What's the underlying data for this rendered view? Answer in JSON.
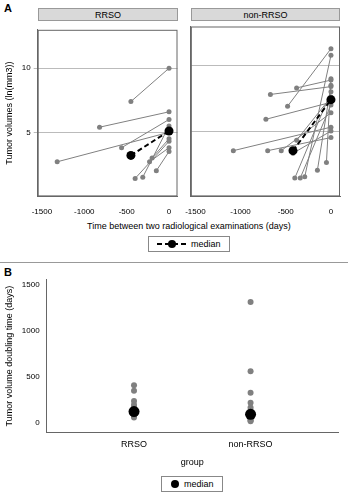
{
  "chart_data": [
    {
      "panel": "A",
      "type": "line",
      "x_label": "Time between two radiological examinations (days)",
      "y_label": "Tumor volumes (ln(mm3))",
      "xlim": [
        -1550,
        100
      ],
      "xticks": [
        -1500,
        -1000,
        -500,
        0
      ],
      "ylim": [
        0,
        13
      ],
      "yticks": [
        5,
        10
      ],
      "grid": true,
      "legend": "bottom",
      "facets": [
        {
          "title": "RRSO",
          "series": [
            {
              "color": "#808080",
              "marker": "circle",
              "x": [
                -1320,
                0
              ],
              "values": [
                2.7,
                5.0
              ]
            },
            {
              "color": "#808080",
              "marker": "circle",
              "x": [
                -820,
                0
              ],
              "values": [
                5.4,
                6.6
              ]
            },
            {
              "color": "#808080",
              "marker": "circle",
              "x": [
                -450,
                0
              ],
              "values": [
                7.4,
                10.0
              ]
            },
            {
              "color": "#808080",
              "marker": "circle",
              "x": [
                -560,
                0
              ],
              "values": [
                3.8,
                6.0
              ]
            },
            {
              "color": "#808080",
              "marker": "circle",
              "x": [
                -400,
                0
              ],
              "values": [
                1.4,
                4.3
              ]
            },
            {
              "color": "#808080",
              "marker": "circle",
              "x": [
                -230,
                0
              ],
              "values": [
                2.7,
                3.8
              ]
            },
            {
              "color": "#808080",
              "marker": "circle",
              "x": [
                -200,
                0
              ],
              "values": [
                3.0,
                4.5
              ]
            },
            {
              "color": "#808080",
              "marker": "circle",
              "x": [
                -150,
                0
              ],
              "values": [
                2.0,
                3.5
              ]
            },
            {
              "color": "#808080",
              "marker": "circle",
              "x": [
                -310,
                0
              ],
              "values": [
                1.5,
                5.5
              ]
            },
            {
              "name": "median",
              "color": "#000000",
              "marker": "circle",
              "line_style": "dashed",
              "x": [
                -450,
                0
              ],
              "values": [
                3.2,
                5.1
              ]
            }
          ]
        },
        {
          "title": "non-RRSO",
          "series": [
            {
              "color": "#808080",
              "marker": "circle",
              "x": [
                -1080,
                0
              ],
              "values": [
                3.5,
                5.3
              ]
            },
            {
              "color": "#808080",
              "marker": "circle",
              "x": [
                -720,
                0
              ],
              "values": [
                5.9,
                7.2
              ]
            },
            {
              "color": "#808080",
              "marker": "circle",
              "x": [
                -670,
                0
              ],
              "values": [
                7.8,
                8.4
              ]
            },
            {
              "color": "#808080",
              "marker": "circle",
              "x": [
                -480,
                0
              ],
              "values": [
                6.9,
                11.3
              ]
            },
            {
              "color": "#808080",
              "marker": "circle",
              "x": [
                -380,
                0
              ],
              "values": [
                8.3,
                8.9
              ]
            },
            {
              "color": "#808080",
              "marker": "circle",
              "x": [
                -700,
                0
              ],
              "values": [
                3.5,
                4.5
              ]
            },
            {
              "color": "#808080",
              "marker": "circle",
              "x": [
                -550,
                0
              ],
              "values": [
                3.5,
                6.4
              ]
            },
            {
              "color": "#808080",
              "marker": "circle",
              "x": [
                -420,
                0
              ],
              "values": [
                3.3,
                5.0
              ]
            },
            {
              "color": "#808080",
              "marker": "circle",
              "x": [
                -400,
                0
              ],
              "values": [
                1.4,
                8.0
              ]
            },
            {
              "color": "#808080",
              "marker": "circle",
              "x": [
                -340,
                0
              ],
              "values": [
                1.4,
                7.0
              ]
            },
            {
              "color": "#808080",
              "marker": "circle",
              "x": [
                -290,
                0
              ],
              "values": [
                1.5,
                10.8
              ]
            },
            {
              "color": "#808080",
              "marker": "circle",
              "x": [
                -380,
                0
              ],
              "values": [
                4.3,
                7.6
              ]
            },
            {
              "color": "#808080",
              "marker": "circle",
              "x": [
                -150,
                0
              ],
              "values": [
                2.0,
                8.5
              ]
            },
            {
              "color": "#808080",
              "marker": "circle",
              "x": [
                -50,
                0
              ],
              "values": [
                2.6,
                9.0
              ]
            },
            {
              "name": "median",
              "color": "#000000",
              "marker": "circle",
              "line_style": "dashed",
              "x": [
                -420,
                0
              ],
              "values": [
                3.5,
                7.4
              ]
            }
          ]
        }
      ]
    },
    {
      "panel": "B",
      "type": "scatter",
      "x_label": "group",
      "y_label": "Tumor volume doubling time (days)",
      "categories": [
        "RRSO",
        "non-RRSO"
      ],
      "ylim": [
        -100,
        1550
      ],
      "yticks": [
        0,
        500,
        1000,
        1500
      ],
      "grid": false,
      "legend": "bottom",
      "series": [
        {
          "color": "#808080",
          "marker": "circle",
          "values": [
            [
              410,
              350,
              240,
              200,
              170,
              150,
              120,
              100,
              80,
              60
            ],
            [
              1310,
              560,
              330,
              220,
              170,
              140,
              110,
              90,
              70,
              50,
              40,
              30,
              20
            ]
          ]
        },
        {
          "name": "median",
          "color": "#000000",
          "marker": "circle",
          "values": [
            [
              125
            ],
            [
              95
            ]
          ]
        }
      ]
    }
  ]
}
